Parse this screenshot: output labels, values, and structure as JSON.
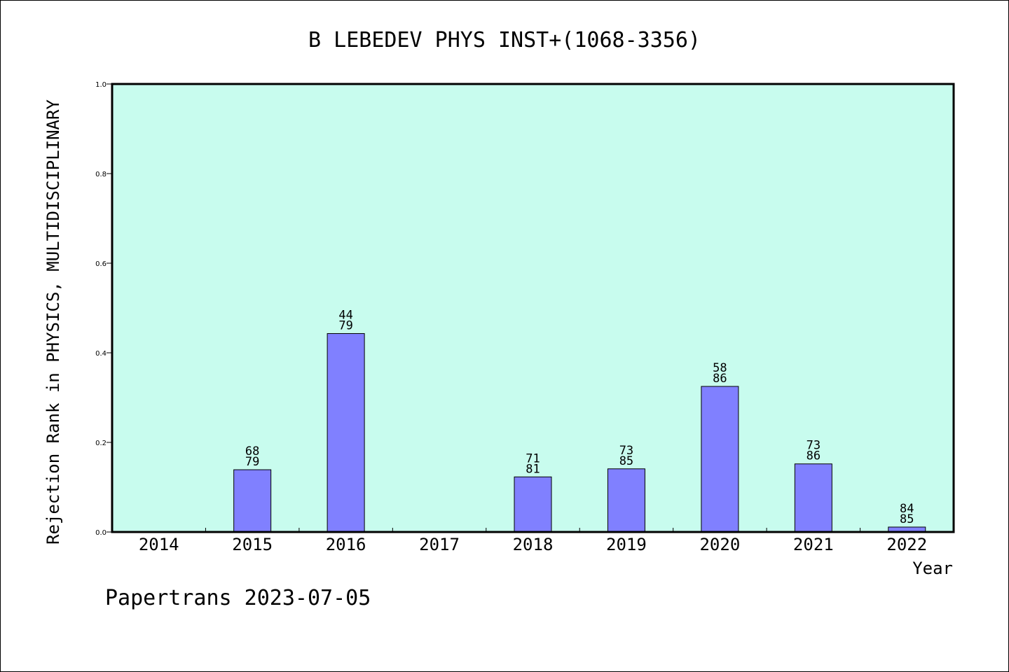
{
  "chart_data": {
    "type": "bar",
    "title": "B LEBEDEV PHYS INST+(1068-3356)",
    "xlabel": "Year",
    "ylabel": "Rejection Rank in PHYSICS, MULTIDISCIPLINARY",
    "ylim": [
      0,
      1.0
    ],
    "yticks": [
      "0.0",
      "0.2",
      "0.4",
      "0.6",
      "0.8",
      "1.0"
    ],
    "categories": [
      "2014",
      "2015",
      "2016",
      "2017",
      "2018",
      "2019",
      "2020",
      "2021",
      "2022"
    ],
    "values": [
      null,
      0.139,
      0.443,
      null,
      0.123,
      0.141,
      0.325,
      0.152,
      0.011
    ],
    "label_top": [
      "",
      "68",
      "44",
      "",
      "71",
      "73",
      "58",
      "73",
      "84"
    ],
    "label_bottom": [
      "",
      "79",
      "79",
      "",
      "81",
      "85",
      "86",
      "86",
      "85"
    ],
    "grid": false,
    "colors": {
      "plot_bg": "#c8fcee",
      "bar": "#8080ff",
      "axis": "#000000"
    }
  },
  "footer": "Papertrans 2023-07-05"
}
